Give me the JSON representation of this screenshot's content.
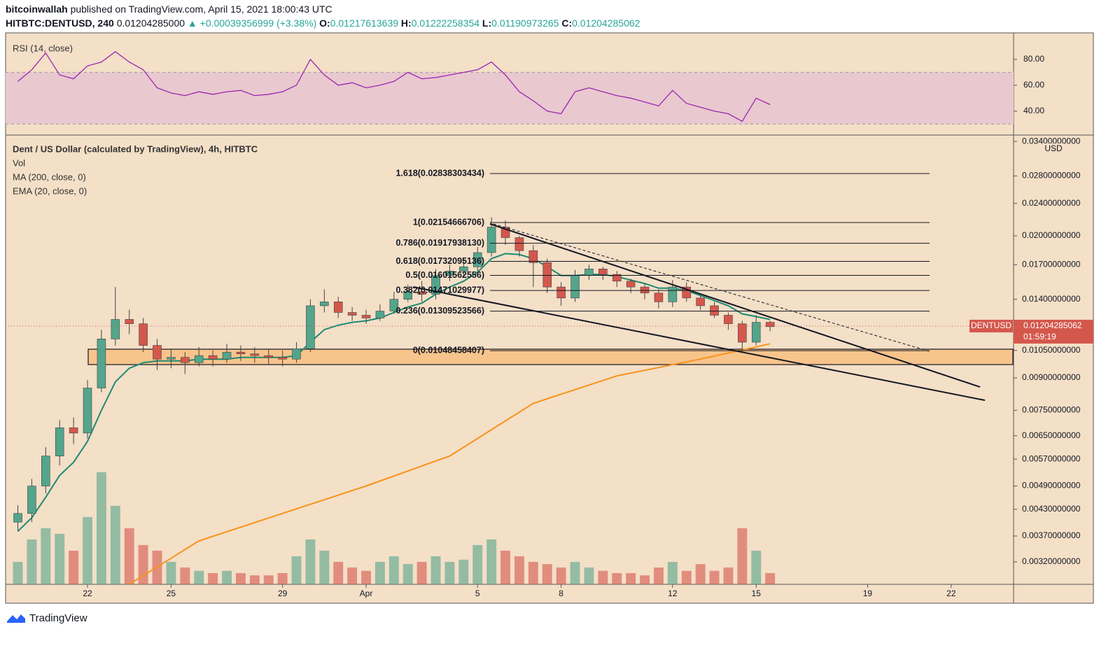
{
  "header": {
    "publisher": "bitcoinwallah",
    "published": "published on TradingView.com, April 15, 2021 18:00:43 UTC",
    "symbol": "HITBTC:DENTUSD, 240",
    "price": "0.01204285000",
    "change": "▲ +0.00039356999 (+3.38%)",
    "ohlc": [
      {
        "key": "O:",
        "value": "0.01217613639"
      },
      {
        "key": "H:",
        "value": "0.01222258354"
      },
      {
        "key": "L:",
        "value": "0.01190973265"
      },
      {
        "key": "C:",
        "value": "0.01204285062"
      }
    ]
  },
  "footer": {
    "brand": "TradingView"
  },
  "chart_data": [
    {
      "type": "candlestick",
      "title": "Dent / US Dollar (calculated by TradingView), 4h, HITBTC",
      "unit": "USD",
      "log_scale": true,
      "up_color": "#53a58b",
      "down_color": "#d4574c",
      "x": [
        -2.5,
        -2,
        -1.5,
        -1,
        -0.5,
        0,
        0.5,
        1,
        1.5,
        2,
        2.5,
        3,
        3.5,
        4,
        4.5,
        5,
        5.5,
        6,
        6.5,
        7,
        7.5,
        8,
        8.5,
        9,
        9.5,
        10,
        10.5,
        11,
        11.5,
        12,
        12.5,
        13,
        13.5,
        14,
        14.5,
        15,
        15.5,
        16,
        16.5,
        17,
        17.5,
        18,
        18.5,
        19,
        19.5,
        20,
        20.5,
        21,
        21.5,
        22,
        22.5,
        23,
        23.5,
        24,
        24.5
      ],
      "open": [
        0.004,
        0.0042,
        0.0049,
        0.0058,
        0.0068,
        0.0066,
        0.0085,
        0.0112,
        0.0125,
        0.0122,
        0.0108,
        0.01,
        0.0101,
        0.0098,
        0.0102,
        0.01,
        0.0104,
        0.0103,
        0.0102,
        0.0101,
        0.01,
        0.0106,
        0.0135,
        0.0138,
        0.013,
        0.0128,
        0.0126,
        0.0131,
        0.014,
        0.0146,
        0.0144,
        0.016,
        0.0164,
        0.0168,
        0.0182,
        0.021,
        0.0198,
        0.0184,
        0.0172,
        0.015,
        0.0141,
        0.016,
        0.0166,
        0.0161,
        0.0155,
        0.015,
        0.0145,
        0.0138,
        0.015,
        0.0141,
        0.0135,
        0.0128,
        0.0122,
        0.011,
        0.0123
      ],
      "high": [
        0.0044,
        0.0051,
        0.0061,
        0.0071,
        0.0072,
        0.0089,
        0.0118,
        0.015,
        0.0132,
        0.0126,
        0.0112,
        0.0106,
        0.0104,
        0.0107,
        0.0105,
        0.0109,
        0.0108,
        0.0107,
        0.0106,
        0.0105,
        0.011,
        0.014,
        0.0148,
        0.0142,
        0.0134,
        0.0132,
        0.0136,
        0.0146,
        0.0152,
        0.0155,
        0.0166,
        0.017,
        0.0176,
        0.0188,
        0.0222,
        0.0218,
        0.02,
        0.019,
        0.0176,
        0.0154,
        0.0165,
        0.017,
        0.0168,
        0.0164,
        0.0157,
        0.0153,
        0.0148,
        0.0156,
        0.0154,
        0.0143,
        0.0138,
        0.013,
        0.0124,
        0.0128,
        0.0124
      ],
      "low": [
        0.0038,
        0.004,
        0.0047,
        0.0055,
        0.0062,
        0.0064,
        0.0083,
        0.0108,
        0.0115,
        0.0104,
        0.0094,
        0.0095,
        0.0092,
        0.0096,
        0.0096,
        0.0098,
        0.0099,
        0.0098,
        0.0097,
        0.0096,
        0.0098,
        0.0104,
        0.013,
        0.0126,
        0.0124,
        0.0122,
        0.0124,
        0.0129,
        0.0138,
        0.0138,
        0.014,
        0.0155,
        0.016,
        0.0164,
        0.0178,
        0.019,
        0.0178,
        0.015,
        0.0145,
        0.0135,
        0.0138,
        0.0156,
        0.0156,
        0.015,
        0.0145,
        0.014,
        0.0133,
        0.0134,
        0.0138,
        0.0132,
        0.0126,
        0.0118,
        0.0105,
        0.0108,
        0.0117
      ],
      "close": [
        0.0042,
        0.0049,
        0.0058,
        0.0068,
        0.0066,
        0.0085,
        0.0112,
        0.0125,
        0.0122,
        0.0108,
        0.01,
        0.0101,
        0.0098,
        0.0102,
        0.01,
        0.0104,
        0.0103,
        0.0102,
        0.0101,
        0.01,
        0.0106,
        0.0135,
        0.0138,
        0.013,
        0.0128,
        0.0126,
        0.0131,
        0.014,
        0.0146,
        0.0144,
        0.016,
        0.0164,
        0.0168,
        0.0182,
        0.021,
        0.0198,
        0.0184,
        0.0172,
        0.015,
        0.0141,
        0.016,
        0.0166,
        0.0161,
        0.0155,
        0.015,
        0.0145,
        0.0138,
        0.015,
        0.0141,
        0.0135,
        0.0128,
        0.0122,
        0.011,
        0.0123,
        0.012
      ],
      "series": [
        {
          "name": "Vol",
          "type": "bar",
          "ylim": [
            0,
            400
          ],
          "values": [
            20,
            40,
            50,
            45,
            30,
            60,
            100,
            70,
            50,
            35,
            30,
            20,
            15,
            12,
            10,
            12,
            10,
            8,
            8,
            10,
            25,
            40,
            30,
            20,
            15,
            12,
            20,
            25,
            18,
            20,
            25,
            20,
            22,
            35,
            40,
            30,
            25,
            20,
            18,
            15,
            20,
            15,
            12,
            10,
            10,
            8,
            15,
            20,
            12,
            18,
            12,
            15,
            50,
            30,
            10
          ]
        },
        {
          "name": "MA (200, close, 0)",
          "type": "line",
          "color": "#f7931a",
          "x": [
            1.5,
            4,
            7,
            10,
            13,
            16,
            19,
            22,
            24.5
          ],
          "values": [
            0.00282,
            0.0036,
            0.0042,
            0.0049,
            0.0058,
            0.0078,
            0.0091,
            0.01,
            0.0109
          ]
        },
        {
          "name": "EMA (20, close, 0)",
          "type": "line",
          "color": "#1e8a72",
          "values": [
            0.0038,
            0.0041,
            0.0046,
            0.0052,
            0.0056,
            0.0063,
            0.0075,
            0.0088,
            0.0095,
            0.0098,
            0.0099,
            0.0099,
            0.0099,
            0.01,
            0.01,
            0.01,
            0.0101,
            0.0101,
            0.0101,
            0.0101,
            0.0102,
            0.011,
            0.0118,
            0.0121,
            0.0123,
            0.0124,
            0.0126,
            0.013,
            0.0134,
            0.0137,
            0.0144,
            0.015,
            0.0155,
            0.0163,
            0.0176,
            0.0181,
            0.018,
            0.0176,
            0.0168,
            0.016,
            0.016,
            0.0161,
            0.0161,
            0.0159,
            0.0156,
            0.0153,
            0.0149,
            0.0149,
            0.0147,
            0.0143,
            0.0139,
            0.0135,
            0.0129,
            0.0127,
            0.0125
          ]
        }
      ],
      "annotations": [
        {
          "label": "1.618(0.02838303434)",
          "value": 0.02838303434
        },
        {
          "label": "1(0.02154666706)",
          "value": 0.02154666706
        },
        {
          "label": "0.786(0.01917938130)",
          "value": 0.0191793813
        },
        {
          "label": "0.618(0.01732095136)",
          "value": 0.01732095136
        },
        {
          "label": "0.5(0.01601562556)",
          "value": 0.01601562556
        },
        {
          "label": "0.382(0.01471029977)",
          "value": 0.01471029977
        },
        {
          "label": "0.236(0.01309523566)",
          "value": 0.01309523566
        },
        {
          "label": "0(0.01048458407)",
          "value": 0.01048458407
        }
      ],
      "last_price": {
        "name": "DENTUSD",
        "value": 0.01204285062,
        "label": "0.01204285062",
        "countdown": "01:59:19"
      },
      "xlim": [
        -2.94,
        33.24
      ],
      "xticks": [
        {
          "value": 0,
          "label": "22"
        },
        {
          "value": 3,
          "label": "25"
        },
        {
          "value": 7,
          "label": "29"
        },
        {
          "value": 10,
          "label": "Apr"
        },
        {
          "value": 14,
          "label": "5"
        },
        {
          "value": 17,
          "label": "8"
        },
        {
          "value": 21,
          "label": "12"
        },
        {
          "value": 24,
          "label": "15"
        },
        {
          "value": 28,
          "label": "19"
        },
        {
          "value": 31,
          "label": "22"
        }
      ],
      "ylim": [
        0.00282,
        0.0351
      ],
      "yticks": [
        {
          "value": 0.034,
          "label": "0.03400000000"
        },
        {
          "value": 0.028,
          "label": "0.02800000000"
        },
        {
          "value": 0.024,
          "label": "0.02400000000"
        },
        {
          "value": 0.02,
          "label": "0.02000000000"
        },
        {
          "value": 0.017,
          "label": "0.01700000000"
        },
        {
          "value": 0.014,
          "label": "0.01400000000"
        },
        {
          "value": 0.0105,
          "label": "0.01050000000"
        },
        {
          "value": 0.009,
          "label": "0.00900000000"
        },
        {
          "value": 0.0075,
          "label": "0.00750000000"
        },
        {
          "value": 0.0065,
          "label": "0.00650000000"
        },
        {
          "value": 0.0057,
          "label": "0.00570000000"
        },
        {
          "value": 0.0049,
          "label": "0.00490000000"
        },
        {
          "value": 0.0043,
          "label": "0.00430000000"
        },
        {
          "value": 0.0037,
          "label": "0.00370000000"
        },
        {
          "value": 0.0032,
          "label": "0.00320000000"
        }
      ]
    },
    {
      "type": "line",
      "title": "RSI (14, close)",
      "color": "#9b27b0",
      "band": [
        30,
        70
      ],
      "x": [
        -2.5,
        -2,
        -1.5,
        -1,
        -0.5,
        0,
        0.5,
        1,
        1.5,
        2,
        2.5,
        3,
        3.5,
        4,
        4.5,
        5,
        5.5,
        6,
        6.5,
        7,
        7.5,
        8,
        8.5,
        9,
        9.5,
        10,
        10.5,
        11,
        11.5,
        12,
        12.5,
        13,
        13.5,
        14,
        14.5,
        15,
        15.5,
        16,
        16.5,
        17,
        17.5,
        18,
        18.5,
        19,
        19.5,
        20,
        20.5,
        21,
        21.5,
        22,
        22.5,
        23,
        23.5,
        24,
        24.5
      ],
      "values": [
        63,
        72,
        85,
        68,
        65,
        75,
        78,
        86,
        78,
        72,
        58,
        54,
        52,
        55,
        53,
        55,
        56,
        52,
        53,
        55,
        60,
        80,
        68,
        60,
        62,
        58,
        60,
        63,
        70,
        65,
        66,
        68,
        70,
        72,
        78,
        68,
        55,
        48,
        40,
        38,
        55,
        58,
        55,
        52,
        50,
        47,
        44,
        56,
        46,
        43,
        40,
        38,
        32,
        50,
        45
      ],
      "ylim": [
        22,
        100
      ],
      "yticks": [
        {
          "value": 80,
          "label": "80.00"
        },
        {
          "value": 60,
          "label": "60.00"
        },
        {
          "value": 40,
          "label": "40.00"
        }
      ]
    }
  ]
}
